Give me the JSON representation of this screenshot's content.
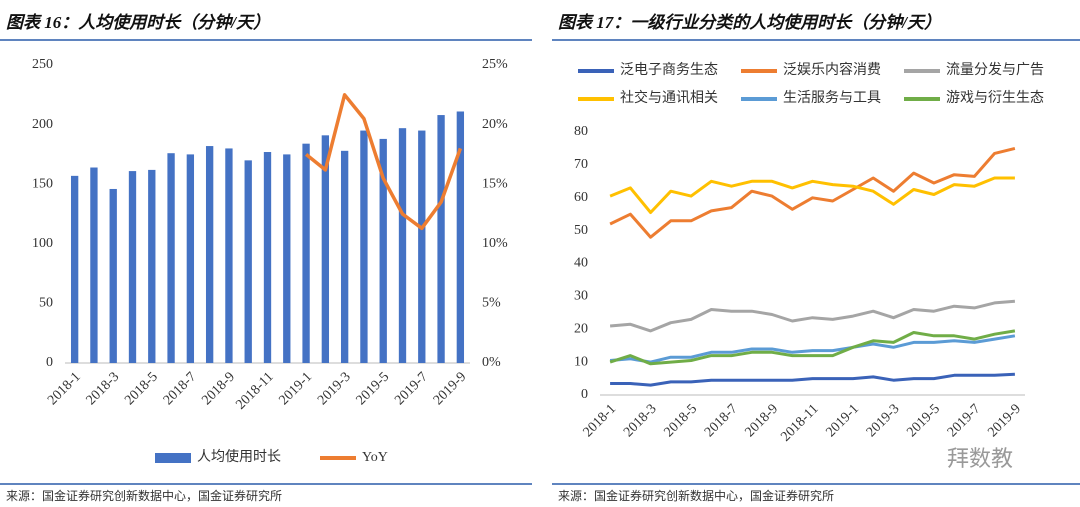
{
  "chart_data": [
    {
      "type": "bar",
      "title": "图表 16：人均使用时长（分钟/天）",
      "source": "来源：国金证券研究创新数据中心，国金证券研究所",
      "categories": [
        "2018-1",
        null,
        "2018-3",
        null,
        "2018-5",
        null,
        "2018-7",
        null,
        "2018-9",
        null,
        "2018-11",
        null,
        "2019-1",
        null,
        "2019-3",
        null,
        "2019-5",
        null,
        "2019-7",
        null,
        "2019-9"
      ],
      "series": [
        {
          "name": "人均使用时长",
          "type": "bar",
          "color": "#4472c4",
          "values": [
            157,
            164,
            146,
            161,
            162,
            176,
            175,
            182,
            180,
            170,
            177,
            175,
            184,
            191,
            178,
            195,
            188,
            197,
            195,
            208,
            211
          ]
        },
        {
          "name": "YoY",
          "type": "line",
          "axis": "y2",
          "color": "#ed7d31",
          "values": [
            null,
            null,
            null,
            null,
            null,
            null,
            null,
            null,
            null,
            null,
            null,
            null,
            17.5,
            16.2,
            22.5,
            20.5,
            15.5,
            12.5,
            11.3,
            13.5,
            18
          ]
        }
      ],
      "ylim": [
        0,
        250
      ],
      "yticks": [
        0,
        50,
        100,
        150,
        200,
        250
      ],
      "y2lim": [
        0,
        25
      ],
      "y2ticks": [
        {
          "value": 0,
          "label": "0%"
        },
        {
          "value": 5,
          "label": "5%"
        },
        {
          "value": 10,
          "label": "10%"
        },
        {
          "value": 15,
          "label": "15%"
        },
        {
          "value": 20,
          "label": "20%"
        },
        {
          "value": 25,
          "label": "25%"
        }
      ],
      "grid": false,
      "legend": "bottom"
    },
    {
      "type": "line",
      "title": "图表 17：一级行业分类的人均使用时长（分钟/天）",
      "source": "来源：国金证券研究创新数据中心，国金证券研究所",
      "categories": [
        "2018-1",
        null,
        "2018-3",
        null,
        "2018-5",
        null,
        "2018-7",
        null,
        "2018-9",
        null,
        "2018-11",
        null,
        "2019-1",
        null,
        "2019-3",
        null,
        "2019-5",
        null,
        "2019-7",
        null,
        "2019-9"
      ],
      "series": [
        {
          "name": "泛电子商务生态",
          "color": "#3a62b8",
          "values": [
            3.5,
            3.5,
            3,
            4,
            4,
            4.5,
            4.5,
            4.5,
            4.5,
            4.5,
            5,
            5,
            5,
            5.5,
            4.5,
            5,
            5,
            6,
            6,
            6,
            6.3
          ]
        },
        {
          "name": "泛娱乐内容消费",
          "color": "#ed7d31",
          "values": [
            52,
            55,
            48,
            53,
            53,
            56,
            57,
            62,
            60.5,
            56.5,
            60,
            59,
            62.5,
            66,
            62,
            67.5,
            64.5,
            67,
            66.5,
            73.5,
            75
          ]
        },
        {
          "name": "流量分发与广告",
          "color": "#a5a5a5",
          "values": [
            21,
            21.5,
            19.5,
            22,
            23,
            26,
            25.5,
            25.5,
            24.5,
            22.5,
            23.5,
            23,
            24,
            25.5,
            23.5,
            26,
            25.5,
            27,
            26.5,
            28,
            28.5
          ]
        },
        {
          "name": "社交与通讯相关",
          "color": "#ffc000",
          "values": [
            60.5,
            63,
            55.5,
            62,
            60.5,
            65,
            63.5,
            65,
            65,
            63,
            65,
            64,
            63.5,
            62,
            58,
            62.5,
            61,
            64,
            63.5,
            66,
            66
          ]
        },
        {
          "name": "生活服务与工具",
          "color": "#5b9bd5",
          "values": [
            10.5,
            11,
            10,
            11.5,
            11.5,
            13,
            13,
            14,
            14,
            13,
            13.5,
            13.5,
            14.5,
            15.5,
            14.5,
            16,
            16,
            16.5,
            16,
            17,
            18
          ]
        },
        {
          "name": "游戏与衍生生态",
          "color": "#70ad47",
          "values": [
            10,
            12,
            9.5,
            10,
            10.5,
            12,
            12,
            13,
            13,
            12,
            12,
            12,
            14.5,
            16.5,
            16,
            19,
            18,
            18,
            17,
            18.5,
            19.5
          ]
        }
      ],
      "ylim": [
        0,
        80
      ],
      "yticks": [
        0,
        10,
        20,
        30,
        40,
        50,
        60,
        70,
        80
      ],
      "grid": false,
      "legend": "top"
    }
  ],
  "watermark": "拜数教"
}
